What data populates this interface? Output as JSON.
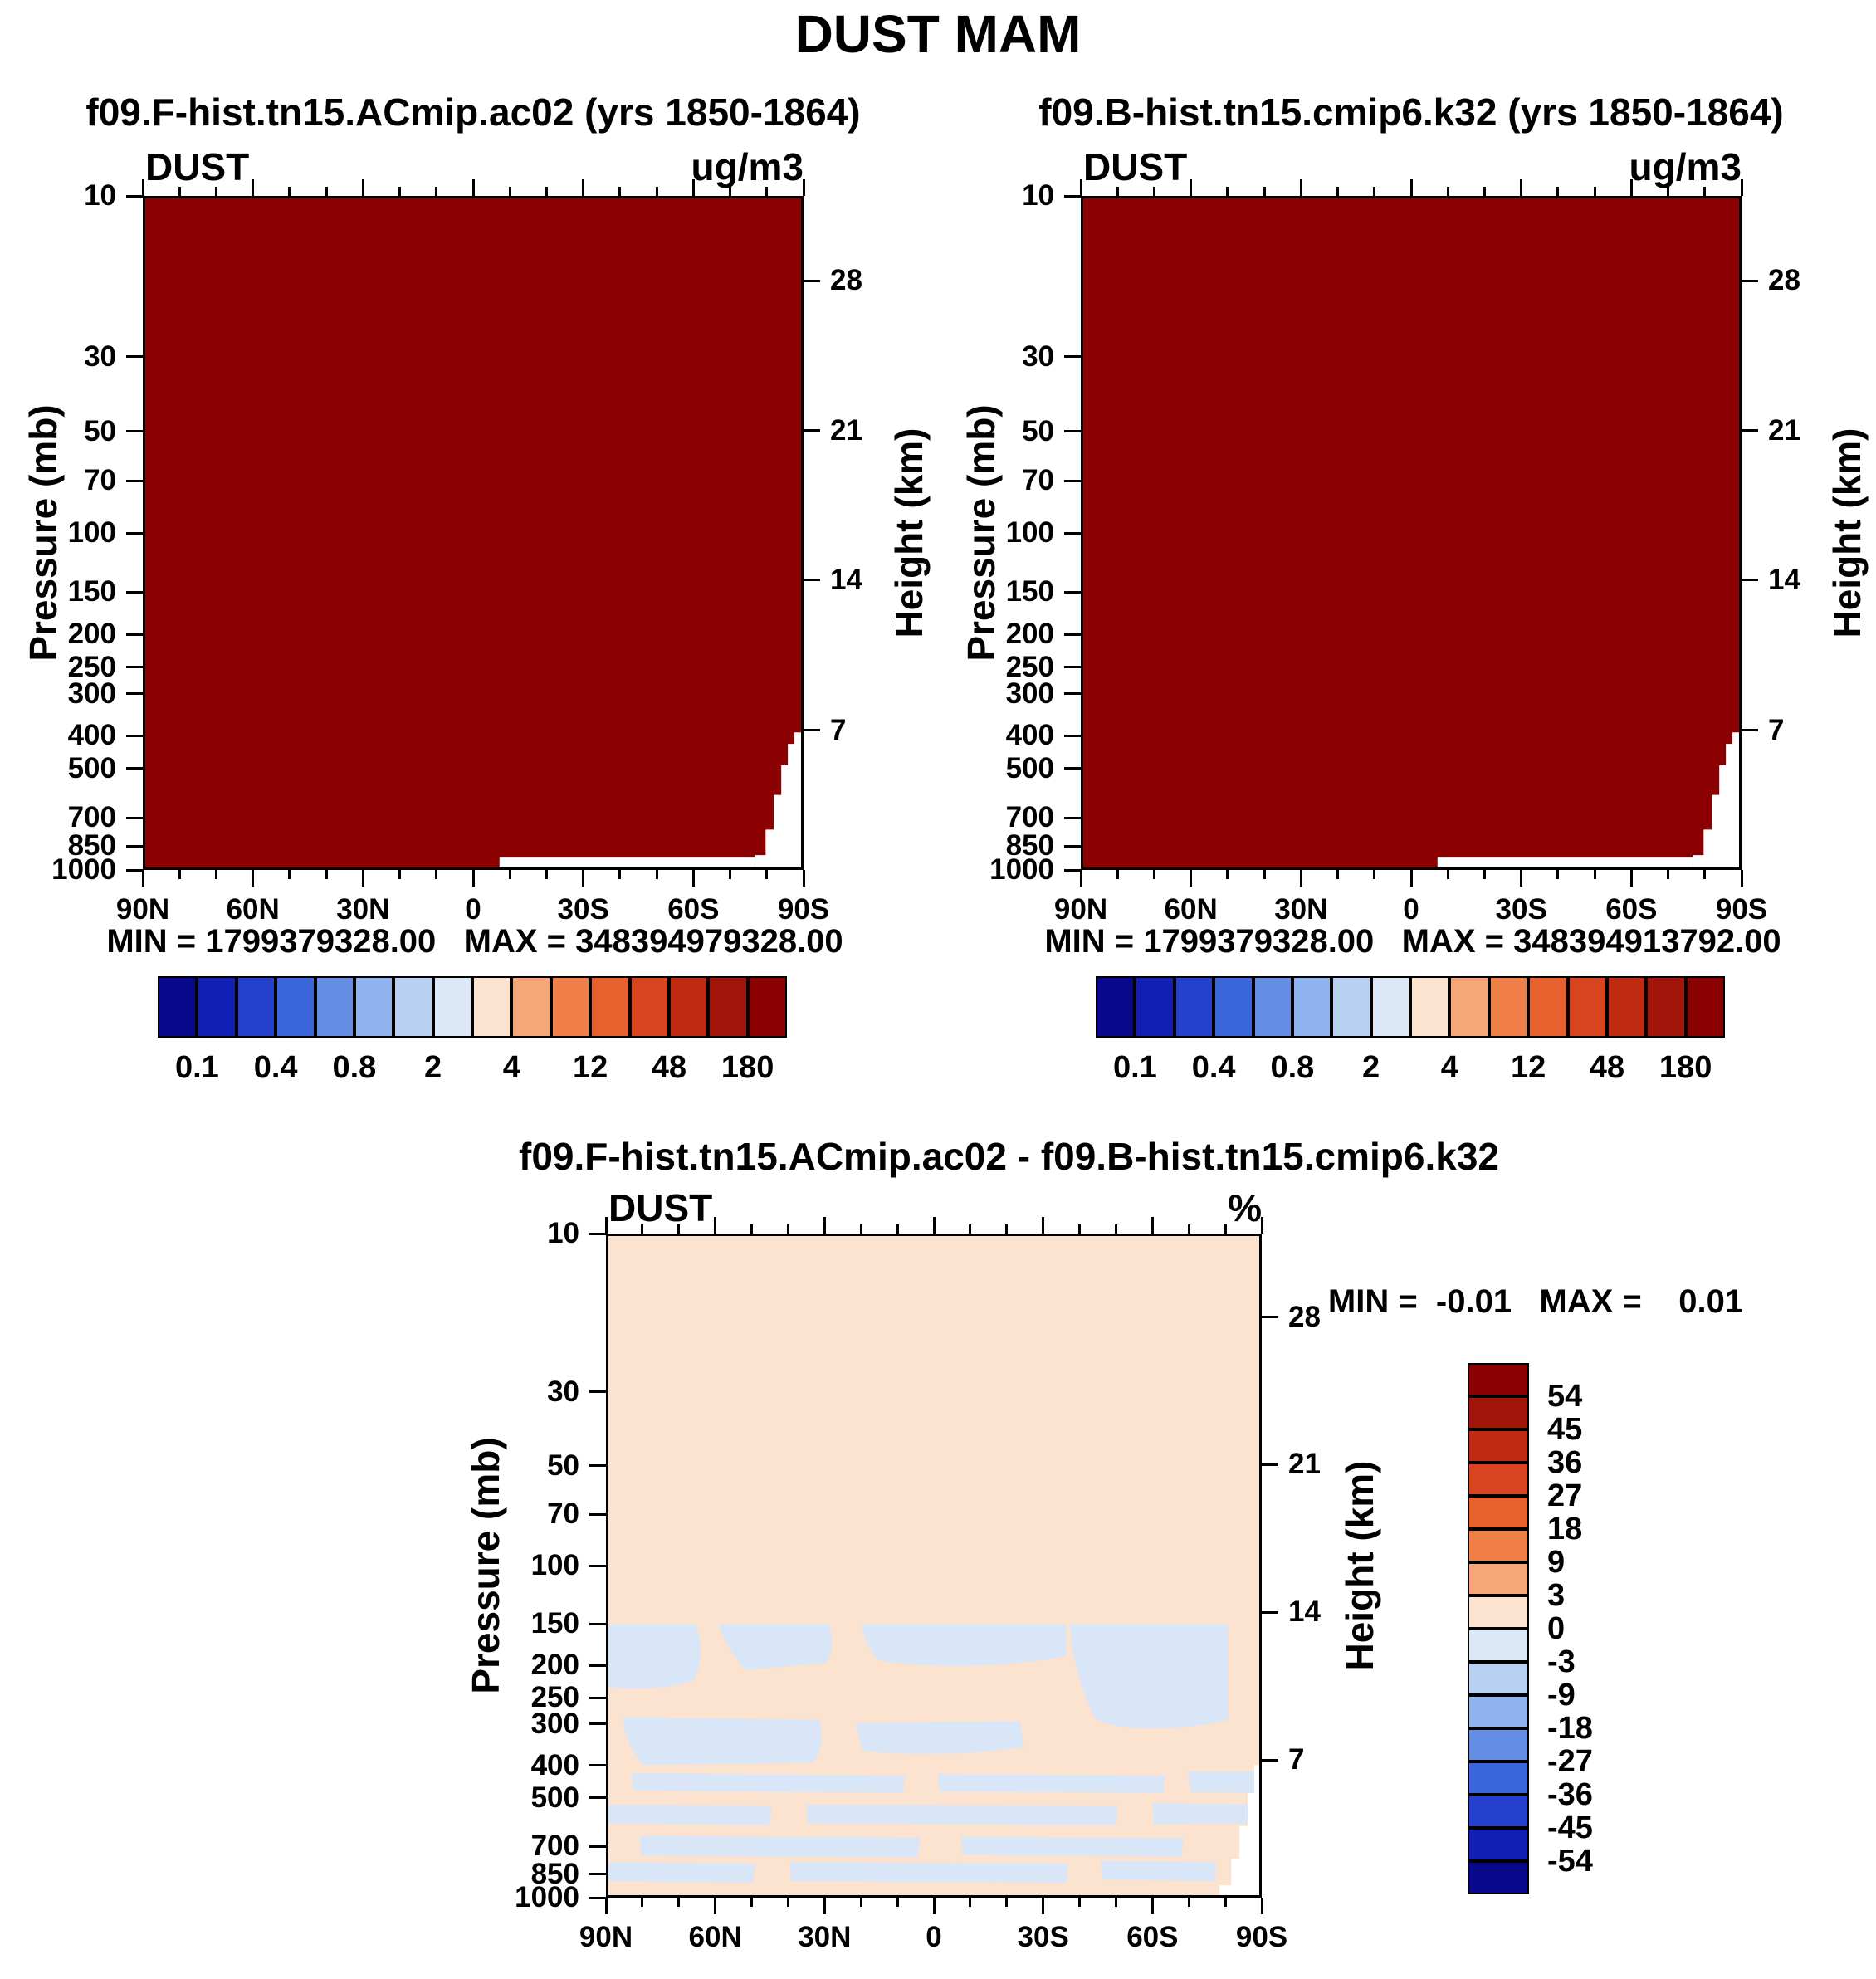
{
  "page": {
    "title": "DUST MAM"
  },
  "axes": {
    "pressure_label": "Pressure (mb)",
    "height_label": "Height (km)",
    "pressure_ticks": [
      "10",
      "30",
      "50",
      "70",
      "100",
      "150",
      "200",
      "250",
      "300",
      "400",
      "500",
      "700",
      "850",
      "1000"
    ],
    "height_ticks": [
      "28",
      "21",
      "14",
      "7"
    ],
    "lat_ticks": [
      "90N",
      "60N",
      "30N",
      "0",
      "30S",
      "60S",
      "90S"
    ]
  },
  "panels": [
    {
      "title": "f09.F-hist.tn15.ACmip.ac02 (yrs 1850-1864)",
      "var_label": "DUST",
      "units_label": "ug/m3",
      "minmax": "MIN = 1799379328.00   MAX = 348394979328.00",
      "colorbar_labels": [
        "0.1",
        "0.4",
        "0.8",
        "2",
        "4",
        "12",
        "48",
        "180"
      ]
    },
    {
      "title": "f09.B-hist.tn15.cmip6.k32 (yrs 1850-1864)",
      "var_label": "DUST",
      "units_label": "ug/m3",
      "minmax": "MIN = 1799379328.00   MAX = 348394913792.00",
      "colorbar_labels": [
        "0.1",
        "0.4",
        "0.8",
        "2",
        "4",
        "12",
        "48",
        "180"
      ]
    },
    {
      "title": "f09.F-hist.tn15.ACmip.ac02 - f09.B-hist.tn15.cmip6.k32",
      "var_label": "DUST",
      "units_label": "%",
      "minmax": "MIN =  -0.01   MAX =    0.01",
      "colorbar_labels": [
        "54",
        "45",
        "36",
        "27",
        "18",
        "9",
        "3",
        "0",
        "-3",
        "-9",
        "-18",
        "-27",
        "-36",
        "-45",
        "-54"
      ]
    }
  ],
  "colors": {
    "field_max": "#8b0000",
    "diff_pos": "#fbe3cf",
    "diff_neg": "#d9e6f8",
    "missing": "#ffffff",
    "h_colormap": [
      "#08088c",
      "#121fb4",
      "#2341cd",
      "#3b66da",
      "#638ee4",
      "#8fb3ec",
      "#b8d0f2",
      "#dce8f7",
      "#fbe3cf",
      "#f5a777",
      "#f08048",
      "#e9602f",
      "#d84420",
      "#bf2a10",
      "#a3150a",
      "#8b0000"
    ],
    "v_colormap": [
      "#8b0000",
      "#a3150a",
      "#bf2a10",
      "#d84420",
      "#e9602f",
      "#f08048",
      "#f5a777",
      "#fbe3cf",
      "#dce8f7",
      "#b8d0f2",
      "#8fb3ec",
      "#638ee4",
      "#3b66da",
      "#2341cd",
      "#121fb4",
      "#08088c"
    ]
  },
  "chart_data": [
    {
      "type": "heatmap",
      "panel": "top-left",
      "title": "f09.F-hist.tn15.ACmip.ac02 (yrs 1850-1864)",
      "variable": "DUST",
      "units": "ug/m3",
      "x_ticks": [
        "90N",
        "60N",
        "30N",
        "0",
        "30S",
        "60S",
        "90S"
      ],
      "y_axis": {
        "label": "Pressure (mb)",
        "scale": "log",
        "range": [
          10,
          1000
        ],
        "ticks": [
          10,
          30,
          50,
          70,
          100,
          150,
          200,
          250,
          300,
          400,
          500,
          700,
          850,
          1000
        ]
      },
      "y2_axis": {
        "label": "Height (km)",
        "ticks": [
          28,
          21,
          14,
          7
        ]
      },
      "stats": {
        "min": "1799379328.00",
        "max": "348394979328.00"
      },
      "colorbar": {
        "orientation": "horizontal",
        "n_boxes": 16,
        "labels": [
          0.1,
          0.4,
          0.8,
          2,
          4,
          12,
          48,
          180
        ]
      },
      "field": "entire latitude-pressure cross-section saturated at the maximum contour color (dark red, >180 ug/m3); white missing-data wedge near 90S below ~700 mb and a thin white sliver along ~1000 mb from roughly 30S to 90S"
    },
    {
      "type": "heatmap",
      "panel": "top-right",
      "title": "f09.B-hist.tn15.cmip6.k32 (yrs 1850-1864)",
      "variable": "DUST",
      "units": "ug/m3",
      "x_ticks": [
        "90N",
        "60N",
        "30N",
        "0",
        "30S",
        "60S",
        "90S"
      ],
      "y_axis": {
        "label": "Pressure (mb)",
        "scale": "log",
        "range": [
          10,
          1000
        ],
        "ticks": [
          10,
          30,
          50,
          70,
          100,
          150,
          200,
          250,
          300,
          400,
          500,
          700,
          850,
          1000
        ]
      },
      "y2_axis": {
        "label": "Height (km)",
        "ticks": [
          28,
          21,
          14,
          7
        ]
      },
      "stats": {
        "min": "1799379328.00",
        "max": "348394913792.00"
      },
      "colorbar": {
        "orientation": "horizontal",
        "n_boxes": 16,
        "labels": [
          0.1,
          0.4,
          0.8,
          2,
          4,
          12,
          48,
          180
        ]
      },
      "field": "identical appearance to top-left: uniform dark red maximum everywhere with white missing-data wedge near 90S at low levels"
    },
    {
      "type": "heatmap",
      "panel": "bottom-difference",
      "title": "f09.F-hist.tn15.ACmip.ac02 - f09.B-hist.tn15.cmip6.k32",
      "variable": "DUST",
      "units": "%",
      "x_ticks": [
        "90N",
        "60N",
        "30N",
        "0",
        "30S",
        "60S",
        "90S"
      ],
      "y_axis": {
        "label": "Pressure (mb)",
        "scale": "log",
        "range": [
          10,
          1000
        ],
        "ticks": [
          10,
          30,
          50,
          70,
          100,
          150,
          200,
          250,
          300,
          400,
          500,
          700,
          850,
          1000
        ]
      },
      "y2_axis": {
        "label": "Height (km)",
        "ticks": [
          28,
          21,
          14,
          7
        ]
      },
      "stats": {
        "min": "-0.01",
        "max": "0.01"
      },
      "colorbar": {
        "orientation": "vertical",
        "n_boxes": 16,
        "labels": [
          54,
          45,
          36,
          27,
          18,
          9,
          3,
          0,
          -3,
          -9,
          -18,
          -27,
          -36,
          -45,
          -54
        ]
      },
      "field": "near-zero differences: pale cream (0 to 3%) everywhere above ~150 mb; alternating pale-blue (-3 to 0%) and cream banded patches between ~150 mb and 1000 mb, with a larger pale-blue patch around 30S-75S between 150 and 300 mb"
    }
  ]
}
